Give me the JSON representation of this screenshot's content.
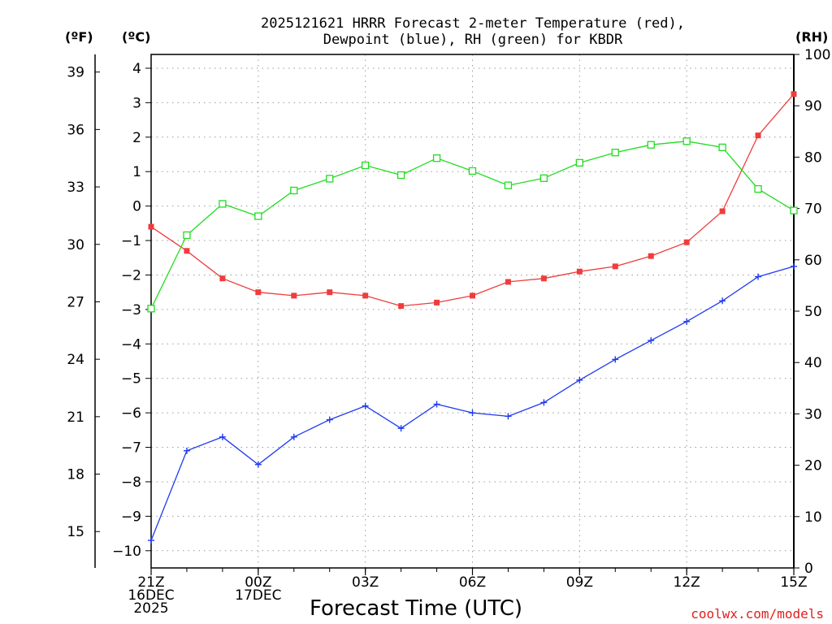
{
  "chart_data": {
    "type": "line",
    "title_line1": "2025121621 HRRR Forecast 2-meter Temperature (red),",
    "title_line2": "Dewpoint (blue), RH (green) for KBDR",
    "units": {
      "fahrenheit": "(ºF)",
      "celsius": "(ºC)",
      "rh": "(RH)"
    },
    "xlabel": "Forecast Time (UTC)",
    "credit": "coolwx.com/models",
    "x_hours": [
      0,
      1,
      2,
      3,
      4,
      5,
      6,
      7,
      8,
      9,
      10,
      11,
      12,
      13,
      14,
      15,
      16,
      17,
      18
    ],
    "x_ticks": [
      {
        "hour": 0,
        "lines": [
          "21Z",
          "16DEC",
          "2025"
        ]
      },
      {
        "hour": 3,
        "lines": [
          "00Z",
          "17DEC"
        ]
      },
      {
        "hour": 6,
        "lines": [
          "03Z"
        ]
      },
      {
        "hour": 9,
        "lines": [
          "06Z"
        ]
      },
      {
        "hour": 12,
        "lines": [
          "09Z"
        ]
      },
      {
        "hour": 15,
        "lines": [
          "12Z"
        ]
      },
      {
        "hour": 18,
        "lines": [
          "15Z"
        ]
      }
    ],
    "celsius_axis": {
      "min": -10.5,
      "max": 4.4,
      "ticks": [
        4,
        3,
        2,
        1,
        0,
        -1,
        -2,
        -3,
        -4,
        -5,
        -6,
        -7,
        -8,
        -9,
        -10
      ],
      "tick_labels": [
        "4",
        "3",
        "2",
        "1",
        "0",
        "−1",
        "−2",
        "−3",
        "−4",
        "−5",
        "−6",
        "−7",
        "−8",
        "−9",
        "−10"
      ]
    },
    "fahrenheit_axis": {
      "ticks": [
        39,
        36,
        33,
        30,
        27,
        24,
        21,
        18,
        15
      ],
      "tick_labels": [
        "39",
        "36",
        "33",
        "30",
        "27",
        "24",
        "21",
        "18",
        "15"
      ]
    },
    "rh_axis": {
      "min": 0,
      "max": 100,
      "ticks": [
        0,
        10,
        20,
        30,
        40,
        50,
        60,
        70,
        80,
        90,
        100
      ],
      "tick_labels": [
        "0",
        "10",
        "20",
        "30",
        "40",
        "50",
        "60",
        "70",
        "80",
        "90",
        "100"
      ]
    },
    "series": [
      {
        "name": "2-meter Temperature",
        "color": "#f03c3c",
        "marker": "filled-square",
        "axis": "celsius",
        "values": [
          -0.6,
          -1.3,
          -2.1,
          -2.5,
          -2.6,
          -2.5,
          -2.6,
          -2.9,
          -2.8,
          -2.6,
          -2.2,
          -2.1,
          -1.9,
          -1.75,
          -1.45,
          -1.05,
          -0.15,
          2.05,
          3.25
        ]
      },
      {
        "name": "Dewpoint",
        "color": "#1f3bf0",
        "marker": "plus",
        "axis": "celsius",
        "values": [
          -9.7,
          -7.1,
          -6.7,
          -7.5,
          -6.7,
          -6.2,
          -5.8,
          -6.45,
          -5.75,
          -6.0,
          -6.1,
          -5.7,
          -5.05,
          -4.45,
          -3.9,
          -3.35,
          -2.75,
          -2.05,
          -1.75
        ]
      },
      {
        "name": "RH",
        "color": "#21dc21",
        "marker": "open-square",
        "axis": "rh",
        "values": [
          50.5,
          64.8,
          70.9,
          68.5,
          73.5,
          75.8,
          78.4,
          76.5,
          79.8,
          77.3,
          74.5,
          75.9,
          78.9,
          80.9,
          82.4,
          83.1,
          81.9,
          73.8,
          69.6
        ]
      }
    ]
  }
}
